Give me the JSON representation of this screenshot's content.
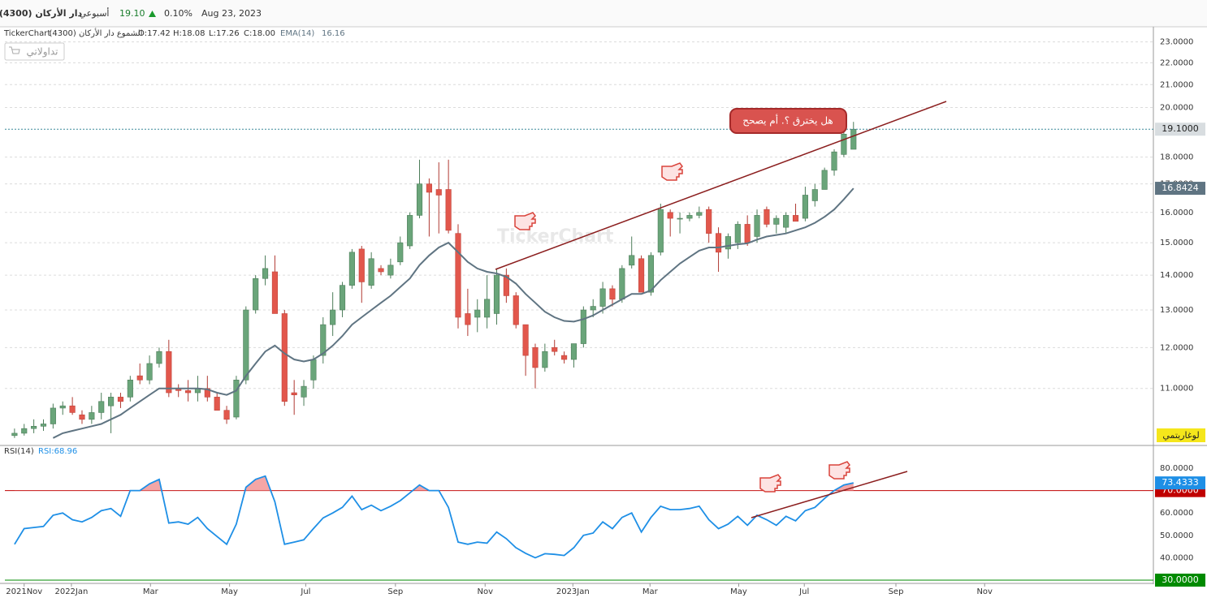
{
  "header": {
    "name": "دار الأركان (4300)",
    "period": "أسبوعي",
    "price": "19.10",
    "change": "0.10%",
    "date": "Aug 23, 2023"
  },
  "legend": {
    "brand": "TickerChart",
    "series": "الشموع دار الأركان (4300)",
    "open": "O:17.42",
    "high": "H:18.08",
    "low": "L:17.26",
    "close": "C:18.00",
    "ema_value": "16.16"
  },
  "button": "تداولاتي",
  "watermark": "TickerChart",
  "callout": "هل يخترق ؟. أم يصحح",
  "chart_data": [
    {
      "type": "candlestick",
      "x": [
        0,
        1,
        2,
        3,
        4,
        5,
        6,
        7,
        8,
        9,
        10,
        11,
        12,
        13,
        14,
        15,
        16,
        17,
        18,
        19,
        20,
        21,
        22,
        23,
        24,
        25,
        26,
        27,
        28,
        29,
        30,
        31,
        32,
        33,
        34,
        35,
        36,
        37,
        38,
        39,
        40,
        41,
        42,
        43,
        44,
        45,
        46,
        47,
        48,
        49,
        50,
        51,
        52,
        53,
        54,
        55,
        56,
        57,
        58,
        59,
        60,
        61,
        62,
        63,
        64,
        65,
        66,
        67,
        68,
        69,
        70,
        71,
        72,
        73,
        74,
        75,
        76,
        77,
        78,
        79,
        80,
        81,
        82,
        83,
        84,
        85,
        86,
        87
      ],
      "open": [
        9.95,
        10.0,
        10.1,
        10.15,
        10.2,
        10.55,
        10.6,
        10.4,
        10.3,
        10.45,
        10.6,
        10.8,
        10.8,
        11.3,
        11.2,
        11.6,
        11.9,
        11.0,
        10.95,
        10.9,
        11.0,
        10.8,
        10.5,
        10.35,
        11.2,
        13.0,
        13.9,
        14.1,
        12.9,
        10.9,
        10.8,
        11.2,
        11.8,
        12.6,
        13.0,
        13.7,
        14.8,
        13.7,
        14.2,
        14.0,
        14.4,
        14.9,
        15.9,
        17.0,
        16.8,
        16.8,
        15.3,
        12.9,
        12.8,
        12.8,
        12.9,
        14.0,
        13.4,
        12.6,
        12.0,
        11.5,
        12.0,
        11.8,
        11.7,
        12.1,
        13.0,
        13.1,
        13.6,
        13.3,
        14.3,
        14.5,
        13.5,
        14.7,
        16.0,
        15.8,
        15.8,
        15.9,
        16.1,
        15.3,
        14.8,
        15.0,
        15.6,
        15.2,
        16.1,
        15.6,
        15.5,
        15.9,
        15.8,
        16.4,
        16.8,
        17.5,
        18.1,
        18.3
      ],
      "high": [
        10.1,
        10.2,
        10.3,
        10.3,
        10.65,
        10.7,
        10.8,
        10.5,
        10.6,
        10.9,
        10.9,
        10.9,
        11.3,
        11.6,
        11.8,
        12.0,
        12.2,
        11.1,
        11.2,
        11.3,
        11.3,
        10.9,
        10.6,
        11.3,
        13.1,
        14.0,
        14.6,
        14.6,
        13.0,
        11.2,
        11.2,
        11.8,
        12.8,
        13.5,
        13.8,
        14.8,
        14.9,
        14.7,
        14.3,
        14.5,
        15.2,
        16.0,
        17.9,
        17.2,
        17.8,
        17.9,
        15.6,
        13.6,
        13.3,
        14.0,
        14.2,
        14.2,
        13.5,
        12.6,
        12.1,
        12.1,
        12.2,
        11.9,
        12.1,
        13.1,
        13.3,
        13.8,
        13.7,
        14.3,
        15.2,
        14.6,
        14.7,
        16.3,
        16.1,
        16.0,
        16.0,
        16.2,
        16.2,
        15.5,
        15.3,
        15.7,
        15.9,
        16.1,
        16.2,
        15.9,
        16.0,
        16.3,
        16.9,
        17.0,
        17.6,
        18.3,
        19.1,
        19.4
      ],
      "low": [
        9.9,
        9.95,
        10.0,
        10.05,
        10.1,
        10.4,
        10.4,
        10.2,
        10.2,
        10.3,
        10.0,
        10.55,
        10.7,
        11.1,
        11.1,
        11.5,
        10.8,
        10.8,
        10.7,
        10.7,
        10.7,
        10.5,
        10.2,
        10.3,
        11.1,
        12.9,
        13.7,
        12.9,
        10.6,
        10.4,
        10.6,
        11.0,
        11.6,
        12.3,
        12.8,
        13.6,
        13.2,
        13.6,
        14.0,
        13.9,
        14.3,
        14.8,
        15.8,
        15.2,
        15.3,
        15.3,
        12.5,
        12.3,
        12.4,
        12.5,
        12.6,
        13.2,
        12.5,
        11.3,
        11.0,
        11.4,
        11.8,
        11.6,
        11.5,
        12.0,
        12.8,
        12.9,
        13.1,
        13.2,
        14.2,
        13.5,
        13.4,
        14.6,
        15.2,
        15.3,
        15.7,
        15.8,
        15.0,
        14.1,
        14.5,
        14.8,
        14.9,
        15.0,
        15.5,
        15.3,
        15.3,
        15.7,
        15.7,
        16.2,
        16.8,
        17.3,
        18.0,
        18.3
      ],
      "close": [
        10.0,
        10.1,
        10.15,
        10.2,
        10.55,
        10.6,
        10.45,
        10.3,
        10.45,
        10.7,
        10.8,
        10.7,
        11.2,
        11.2,
        11.6,
        11.9,
        10.9,
        10.95,
        10.9,
        11.0,
        10.8,
        10.5,
        10.3,
        11.2,
        13.0,
        13.9,
        14.2,
        12.9,
        10.7,
        10.85,
        11.05,
        11.7,
        12.6,
        13.0,
        13.7,
        14.7,
        13.8,
        14.5,
        14.1,
        14.3,
        15.0,
        15.9,
        17.0,
        16.7,
        16.6,
        15.4,
        12.8,
        12.6,
        13.0,
        13.3,
        14.0,
        13.4,
        12.6,
        11.8,
        11.5,
        11.9,
        11.9,
        11.7,
        12.1,
        13.0,
        13.1,
        13.6,
        13.3,
        14.2,
        14.6,
        13.5,
        14.6,
        16.1,
        15.8,
        15.8,
        15.9,
        16.0,
        15.3,
        14.7,
        15.2,
        15.6,
        15.0,
        15.9,
        15.6,
        15.8,
        15.9,
        15.7,
        16.6,
        16.8,
        17.5,
        18.2,
        18.9,
        19.1
      ],
      "up_color": "#6aa57a",
      "down_color": "#e2574c",
      "overlay": {
        "name": "EMA(14)",
        "color": "#5f7482",
        "values": [
          null,
          null,
          null,
          null,
          9.9,
          10.0,
          10.05,
          10.1,
          10.15,
          10.2,
          10.3,
          10.4,
          10.55,
          10.7,
          10.85,
          11.0,
          11.0,
          11.0,
          11.0,
          11.0,
          10.98,
          10.9,
          10.85,
          10.95,
          11.3,
          11.6,
          11.9,
          12.05,
          11.85,
          11.7,
          11.65,
          11.7,
          11.85,
          12.05,
          12.3,
          12.6,
          12.8,
          13.0,
          13.2,
          13.4,
          13.65,
          13.9,
          14.3,
          14.6,
          14.85,
          15.0,
          14.7,
          14.4,
          14.2,
          14.1,
          14.05,
          13.95,
          13.75,
          13.45,
          13.2,
          12.95,
          12.8,
          12.7,
          12.68,
          12.75,
          12.85,
          13.0,
          13.15,
          13.3,
          13.45,
          13.45,
          13.55,
          13.85,
          14.1,
          14.35,
          14.55,
          14.75,
          14.85,
          14.85,
          14.9,
          14.95,
          14.98,
          15.1,
          15.2,
          15.25,
          15.3,
          15.4,
          15.5,
          15.65,
          15.85,
          16.1,
          16.45,
          16.8424
        ],
        "last_label": {
          "value": 16.8424,
          "label": "16.8424"
        }
      },
      "last_price": {
        "value": 19.1,
        "label": "19.1000"
      },
      "xlim": [
        -1.0,
        118.1
      ],
      "ylim": [
        9.76,
        23.67
      ],
      "log": true,
      "grid": true,
      "yticks": [
        {
          "value": 11,
          "label": "11.0000"
        },
        {
          "value": 12,
          "label": "12.0000"
        },
        {
          "value": 13,
          "label": "13.0000"
        },
        {
          "value": 14,
          "label": "14.0000"
        },
        {
          "value": 15,
          "label": "15.0000"
        },
        {
          "value": 16,
          "label": "16.0000"
        },
        {
          "value": 17,
          "label": "17.0000"
        },
        {
          "value": 18,
          "label": "18.0000"
        },
        {
          "value": 20,
          "label": "20.0000"
        },
        {
          "value": 21,
          "label": "21.0000"
        },
        {
          "value": 22,
          "label": "22.0000"
        },
        {
          "value": 23,
          "label": "23.0000"
        }
      ],
      "scale_button": "لوغاريتمي"
    },
    {
      "type": "line",
      "x": [
        0,
        1,
        2,
        3,
        4,
        5,
        6,
        7,
        8,
        9,
        10,
        11,
        12,
        13,
        14,
        15,
        16,
        17,
        18,
        19,
        20,
        21,
        22,
        23,
        24,
        25,
        26,
        27,
        28,
        29,
        30,
        31,
        32,
        33,
        34,
        35,
        36,
        37,
        38,
        39,
        40,
        41,
        42,
        43,
        44,
        45,
        46,
        47,
        48,
        49,
        50,
        51,
        52,
        53,
        54,
        55,
        56,
        57,
        58,
        59,
        60,
        61,
        62,
        63,
        64,
        65,
        66,
        67,
        68,
        69,
        70,
        71,
        72,
        73,
        74,
        75,
        76,
        77,
        78,
        79,
        80,
        81,
        82,
        83,
        84,
        85,
        86,
        87
      ],
      "series": [
        {
          "name": "RSI(14)",
          "color": "#1e8fe6",
          "values": [
            46,
            53,
            53.5,
            54,
            59,
            60,
            57,
            56,
            58,
            61,
            62,
            58.5,
            70,
            70,
            73,
            75,
            55.5,
            56,
            55,
            58,
            53,
            49.5,
            46,
            55,
            71.5,
            75,
            76.5,
            65,
            46,
            47,
            48,
            53,
            57.8,
            60,
            62.5,
            67.5,
            61.5,
            63.5,
            61,
            63,
            65.5,
            69,
            72.5,
            70,
            70,
            62.5,
            47,
            46,
            47,
            46.5,
            51.5,
            48.5,
            44.5,
            42,
            40,
            41.8,
            41.5,
            41,
            44.5,
            50,
            51,
            56,
            53,
            58,
            60,
            51.5,
            58,
            63,
            61.5,
            61.5,
            62,
            63,
            57,
            53,
            55,
            58.5,
            54.5,
            59,
            57,
            54.5,
            58.5,
            56.5,
            61,
            62.5,
            66.5,
            70,
            72.5,
            73.4333
          ],
          "last_label": {
            "value": 73.4333,
            "label": "73.4333"
          }
        }
      ],
      "value_text": "RSI:68.96",
      "xlim": [
        -1.0,
        118.1
      ],
      "ylim": [
        28.9,
        89.8
      ],
      "yticks": [
        {
          "value": 40,
          "label": "40.0000"
        },
        {
          "value": 50,
          "label": "50.0000"
        },
        {
          "value": 60,
          "label": "60.0000"
        },
        {
          "value": 80,
          "label": "80.0000"
        }
      ],
      "levels": [
        {
          "value": 70,
          "label": "70.0000",
          "color": "#c00000"
        },
        {
          "value": 30,
          "label": "30.0000",
          "color": "#008a00"
        }
      ],
      "overbought_color": "#f4a6a6",
      "xticks": [
        {
          "value": 1.0,
          "label": "2021Nov"
        },
        {
          "value": 5.9,
          "label": "2022Jan"
        },
        {
          "value": 14.1,
          "label": "Mar"
        },
        {
          "value": 22.3,
          "label": "May"
        },
        {
          "value": 30.2,
          "label": "Jul"
        },
        {
          "value": 39.5,
          "label": "Sep"
        },
        {
          "value": 48.8,
          "label": "Nov"
        },
        {
          "value": 57.9,
          "label": "2023Jan"
        },
        {
          "value": 65.9,
          "label": "Mar"
        },
        {
          "value": 75.1,
          "label": "May"
        },
        {
          "value": 81.9,
          "label": "Jul"
        },
        {
          "value": 91.4,
          "label": "Sep"
        },
        {
          "value": 100.6,
          "label": "Nov"
        }
      ]
    }
  ]
}
